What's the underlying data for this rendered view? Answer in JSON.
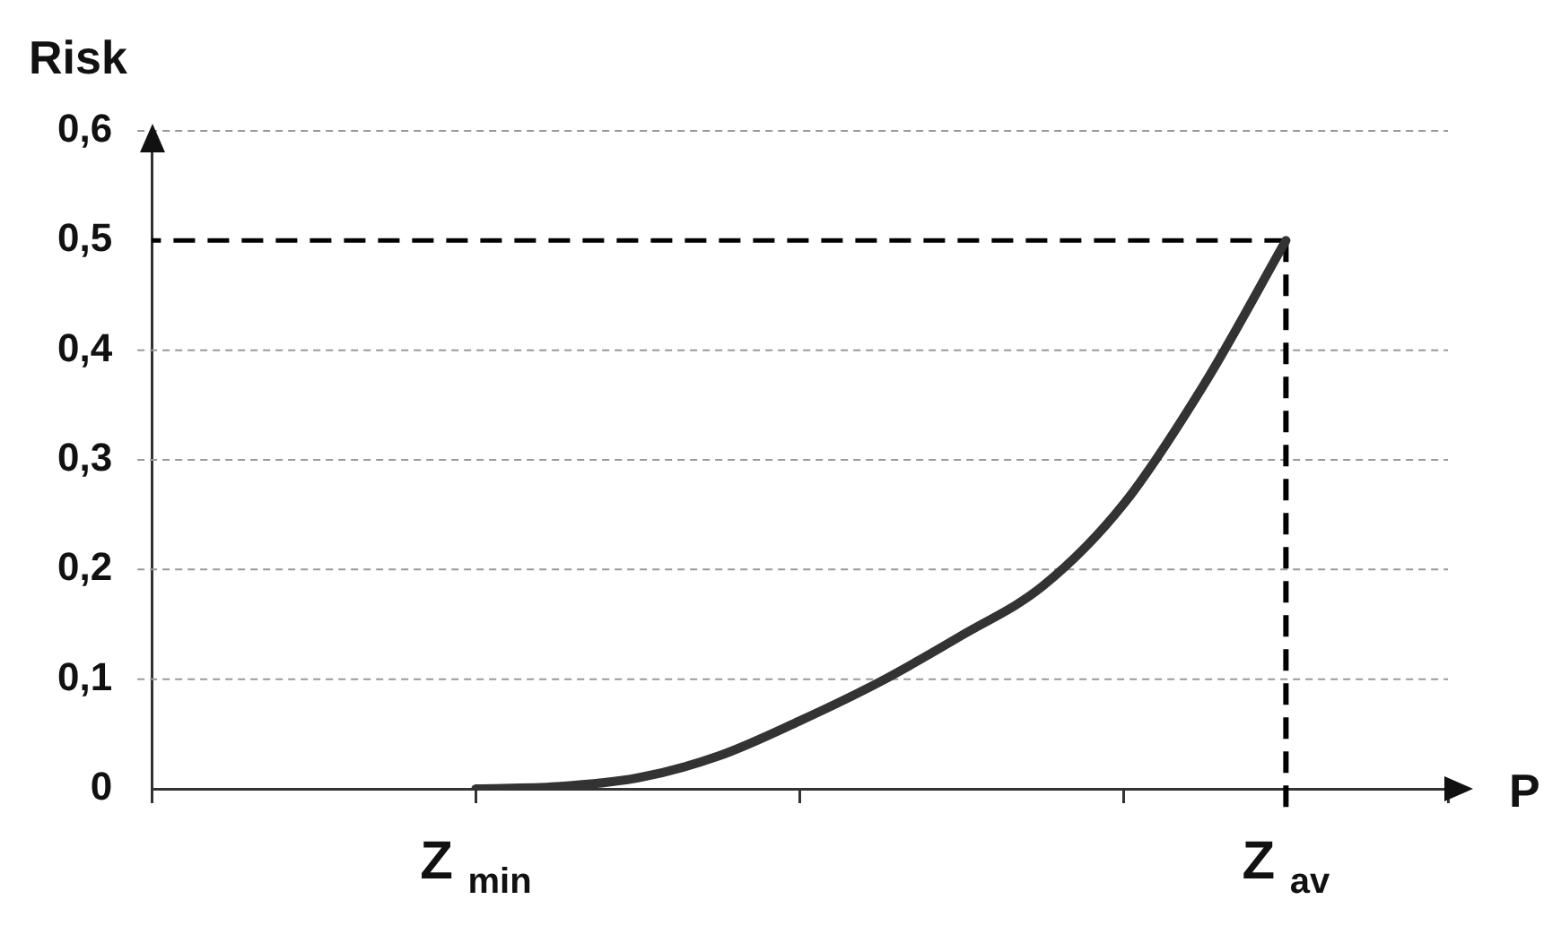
{
  "chart_data": {
    "type": "line",
    "ylabel": "Risk",
    "xlabel": "P",
    "categories": [
      null,
      null,
      null,
      null,
      "Z$_{min}$",
      null,
      null,
      null,
      null,
      null,
      null,
      null,
      null,
      null,
      "Z$_{av}$",
      null,
      null
    ],
    "series": [
      {
        "color": "#333333",
        "values": [
          null,
          null,
          null,
          null,
          0,
          0.002,
          0.01,
          0.03,
          0.062,
          0.098,
          0.14,
          0.185,
          0.26,
          0.37,
          0.5,
          null,
          null
        ]
      }
    ],
    "ylim": [
      0,
      0.6
    ],
    "yticks": [
      {
        "value": 0,
        "label": "0"
      },
      {
        "value": 0.1,
        "label": "0,1"
      },
      {
        "value": 0.2,
        "label": "0,2"
      },
      {
        "value": 0.3,
        "label": "0,3"
      },
      {
        "value": 0.4,
        "label": "0,4"
      },
      {
        "value": 0.5,
        "label": "0,5"
      },
      {
        "value": 0.6,
        "label": "0,6"
      }
    ],
    "ref_lines": [
      {
        "axis": "y",
        "value": 0.5,
        "color": "#000000",
        "line_style": "dashed"
      },
      {
        "axis": "x",
        "value": "Z$_{av}$",
        "color": "#000000",
        "line_style": "dashed"
      }
    ],
    "grid": "y",
    "legend": false,
    "marker": "none",
    "line_style": "solid"
  }
}
